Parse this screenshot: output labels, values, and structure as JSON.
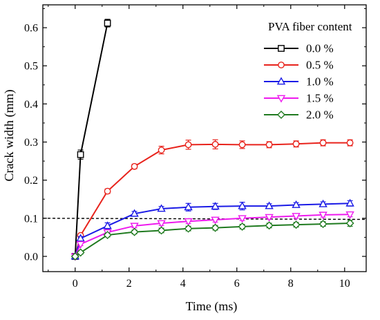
{
  "chart_data": {
    "type": "line",
    "xlabel": "Time (ms)",
    "ylabel": "Crack width (mm)",
    "xlim": [
      -1.2,
      10.8
    ],
    "ylim": [
      -0.04,
      0.66
    ],
    "x_ticks": [
      0,
      2,
      4,
      6,
      8,
      10
    ],
    "x_tick_labels": [
      "0",
      "2",
      "4",
      "6",
      "8",
      "10"
    ],
    "y_ticks": [
      0.0,
      0.1,
      0.2,
      0.3,
      0.4,
      0.5,
      0.6
    ],
    "y_tick_labels": [
      "0.0",
      "0.1",
      "0.2",
      "0.3",
      "0.4",
      "0.5",
      "0.6"
    ],
    "legend_title": "PVA fiber content",
    "legend_position": "top-right",
    "grid": false,
    "reference_line": {
      "y": 0.1,
      "style": "dashed",
      "color": "#000000",
      "y_end": 0.097
    },
    "series": [
      {
        "name": "0.0 %",
        "color": "#000000",
        "marker": "square",
        "x": [
          0,
          0.2,
          1.2
        ],
        "y": [
          0.0,
          0.267,
          0.612
        ],
        "err": [
          0.0,
          0.012,
          0.01
        ]
      },
      {
        "name": "0.5 %",
        "color": "#e8231c",
        "marker": "circle",
        "x": [
          0,
          0.2,
          1.2,
          2.2,
          3.2,
          4.2,
          5.2,
          6.2,
          7.2,
          8.2,
          9.2,
          10.2
        ],
        "y": [
          0.0,
          0.055,
          0.171,
          0.236,
          0.279,
          0.293,
          0.294,
          0.293,
          0.293,
          0.295,
          0.298,
          0.298
        ],
        "err": [
          0.0,
          0.004,
          0.006,
          0.006,
          0.01,
          0.012,
          0.012,
          0.01,
          0.008,
          0.008,
          0.008,
          0.008
        ]
      },
      {
        "name": "1.0 %",
        "color": "#1a1ae6",
        "marker": "triangle-up",
        "x": [
          0,
          0.2,
          1.2,
          2.2,
          3.2,
          4.2,
          5.2,
          6.2,
          7.2,
          8.2,
          9.2,
          10.2
        ],
        "y": [
          0.0,
          0.047,
          0.08,
          0.112,
          0.125,
          0.129,
          0.131,
          0.132,
          0.132,
          0.135,
          0.137,
          0.139
        ],
        "err": [
          0.0,
          0.005,
          0.008,
          0.006,
          0.006,
          0.01,
          0.008,
          0.01,
          0.006,
          0.006,
          0.006,
          0.007
        ]
      },
      {
        "name": "1.5 %",
        "color": "#ee1aee",
        "marker": "triangle-down",
        "x": [
          0,
          0.2,
          1.2,
          2.2,
          3.2,
          4.2,
          5.2,
          6.2,
          7.2,
          8.2,
          9.2,
          10.2
        ],
        "y": [
          0.0,
          0.032,
          0.063,
          0.08,
          0.087,
          0.092,
          0.096,
          0.1,
          0.103,
          0.106,
          0.109,
          0.11
        ],
        "err": [
          0.0,
          0.004,
          0.005,
          0.005,
          0.006,
          0.006,
          0.006,
          0.006,
          0.006,
          0.006,
          0.006,
          0.006
        ]
      },
      {
        "name": "2.0 %",
        "color": "#1f7a1f",
        "marker": "diamond",
        "x": [
          0,
          0.2,
          1.2,
          2.2,
          3.2,
          4.2,
          5.2,
          6.2,
          7.2,
          8.2,
          9.2,
          10.2
        ],
        "y": [
          0.0,
          0.01,
          0.056,
          0.064,
          0.068,
          0.073,
          0.075,
          0.078,
          0.081,
          0.083,
          0.085,
          0.087
        ],
        "err": [
          0.0,
          0.004,
          0.005,
          0.005,
          0.006,
          0.006,
          0.006,
          0.006,
          0.006,
          0.006,
          0.006,
          0.008
        ]
      }
    ]
  }
}
